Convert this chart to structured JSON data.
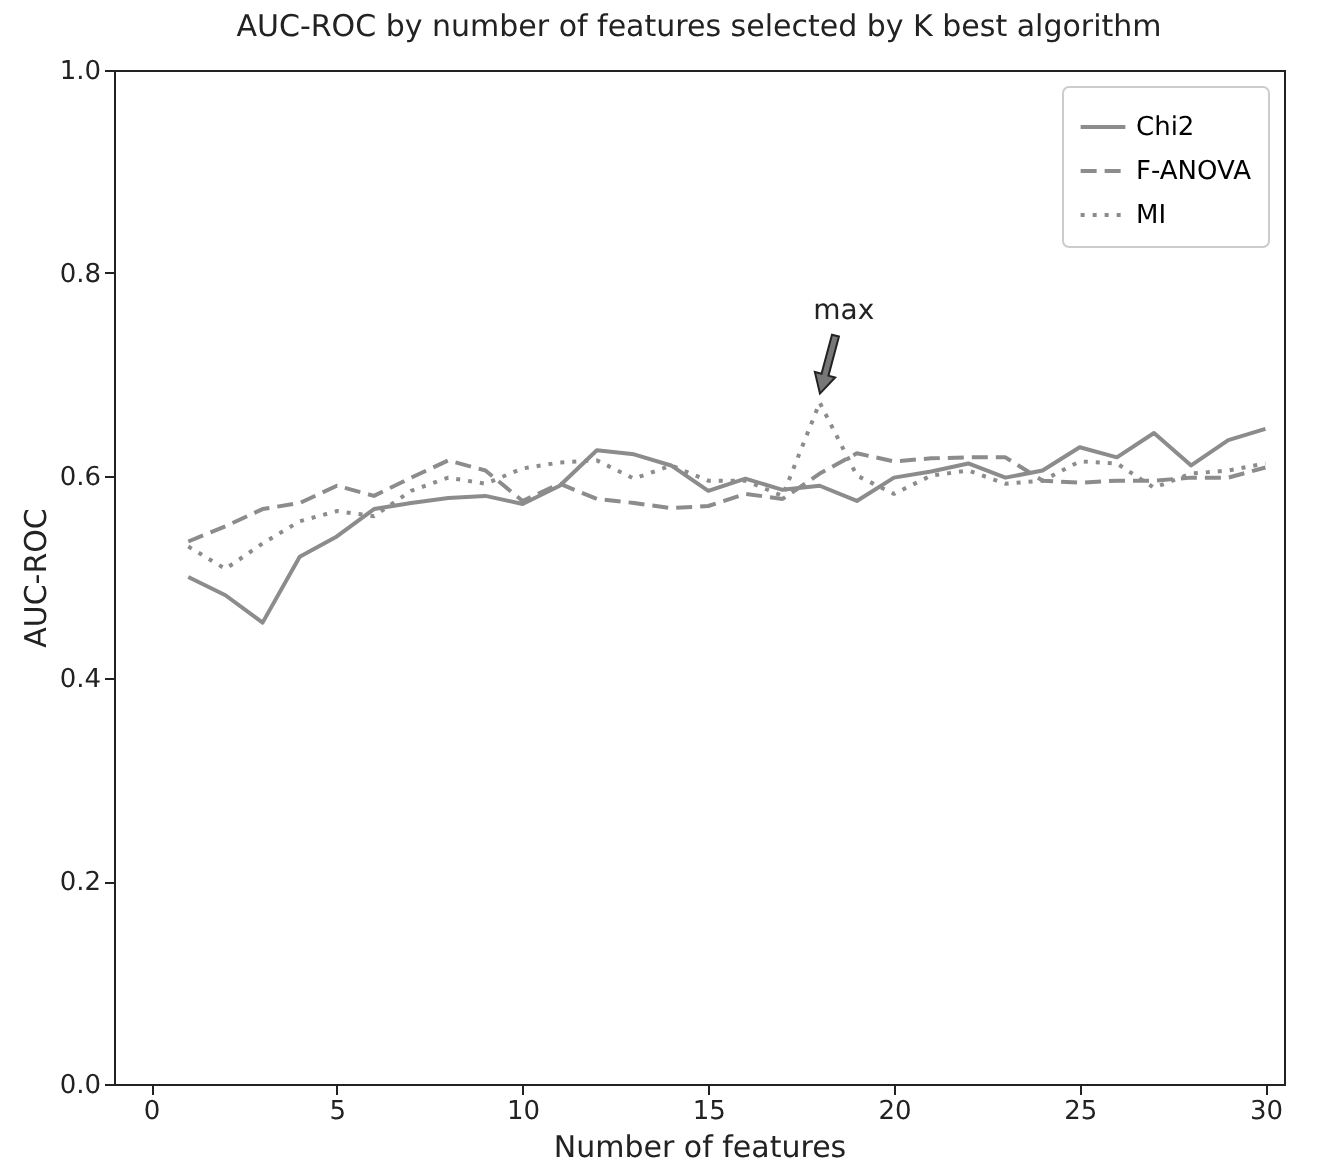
{
  "chart_data": {
    "type": "line",
    "title": "AUC-ROC by number of features selected by K best algorithm",
    "xlabel": "Number of features",
    "ylabel": "AUC-ROC",
    "x": [
      1,
      2,
      3,
      4,
      5,
      6,
      7,
      8,
      9,
      10,
      11,
      12,
      13,
      14,
      15,
      16,
      17,
      18,
      19,
      20,
      21,
      22,
      23,
      24,
      25,
      26,
      27,
      28,
      29,
      30
    ],
    "series": [
      {
        "name": "Chi2",
        "color": "#8c8c8c",
        "line_style": "solid",
        "values": [
          0.5,
          0.482,
          0.455,
          0.52,
          0.54,
          0.567,
          0.573,
          0.578,
          0.58,
          0.572,
          0.59,
          0.625,
          0.621,
          0.61,
          0.585,
          0.597,
          0.586,
          0.59,
          0.575,
          0.598,
          0.604,
          0.612,
          0.598,
          0.605,
          0.628,
          0.618,
          0.642,
          0.61,
          0.635,
          0.646
        ]
      },
      {
        "name": "F-ANOVA",
        "color": "#8c8c8c",
        "line_style": "dashed",
        "values": [
          0.535,
          0.55,
          0.567,
          0.573,
          0.59,
          0.58,
          0.598,
          0.615,
          0.605,
          0.575,
          0.592,
          0.577,
          0.573,
          0.568,
          0.57,
          0.582,
          0.577,
          0.602,
          0.622,
          0.614,
          0.617,
          0.618,
          0.618,
          0.595,
          0.593,
          0.595,
          0.595,
          0.598,
          0.598,
          0.608
        ]
      },
      {
        "name": "MI",
        "color": "#8c8c8c",
        "line_style": "dotted",
        "values": [
          0.53,
          0.508,
          0.533,
          0.555,
          0.565,
          0.56,
          0.585,
          0.598,
          0.592,
          0.607,
          0.613,
          0.615,
          0.597,
          0.61,
          0.595,
          0.595,
          0.58,
          0.672,
          0.6,
          0.582,
          0.6,
          0.605,
          0.592,
          0.595,
          0.614,
          0.612,
          0.588,
          0.602,
          0.605,
          0.612
        ]
      }
    ],
    "annotations": [
      {
        "text": "max",
        "x": 18,
        "y": 0.672
      }
    ],
    "xlim": [
      -1,
      30.5
    ],
    "xticks": [
      0,
      5,
      10,
      15,
      20,
      25,
      30
    ],
    "ylim": [
      0,
      1
    ],
    "yticks": [
      {
        "value": 0,
        "label": "0.0"
      },
      {
        "value": 0.2,
        "label": "0.2"
      },
      {
        "value": 0.4,
        "label": "0.4"
      },
      {
        "value": 0.6,
        "label": "0.6"
      },
      {
        "value": 0.8,
        "label": "0.8"
      },
      {
        "value": 1,
        "label": "1.0"
      }
    ],
    "grid": false,
    "legend": "top right"
  }
}
